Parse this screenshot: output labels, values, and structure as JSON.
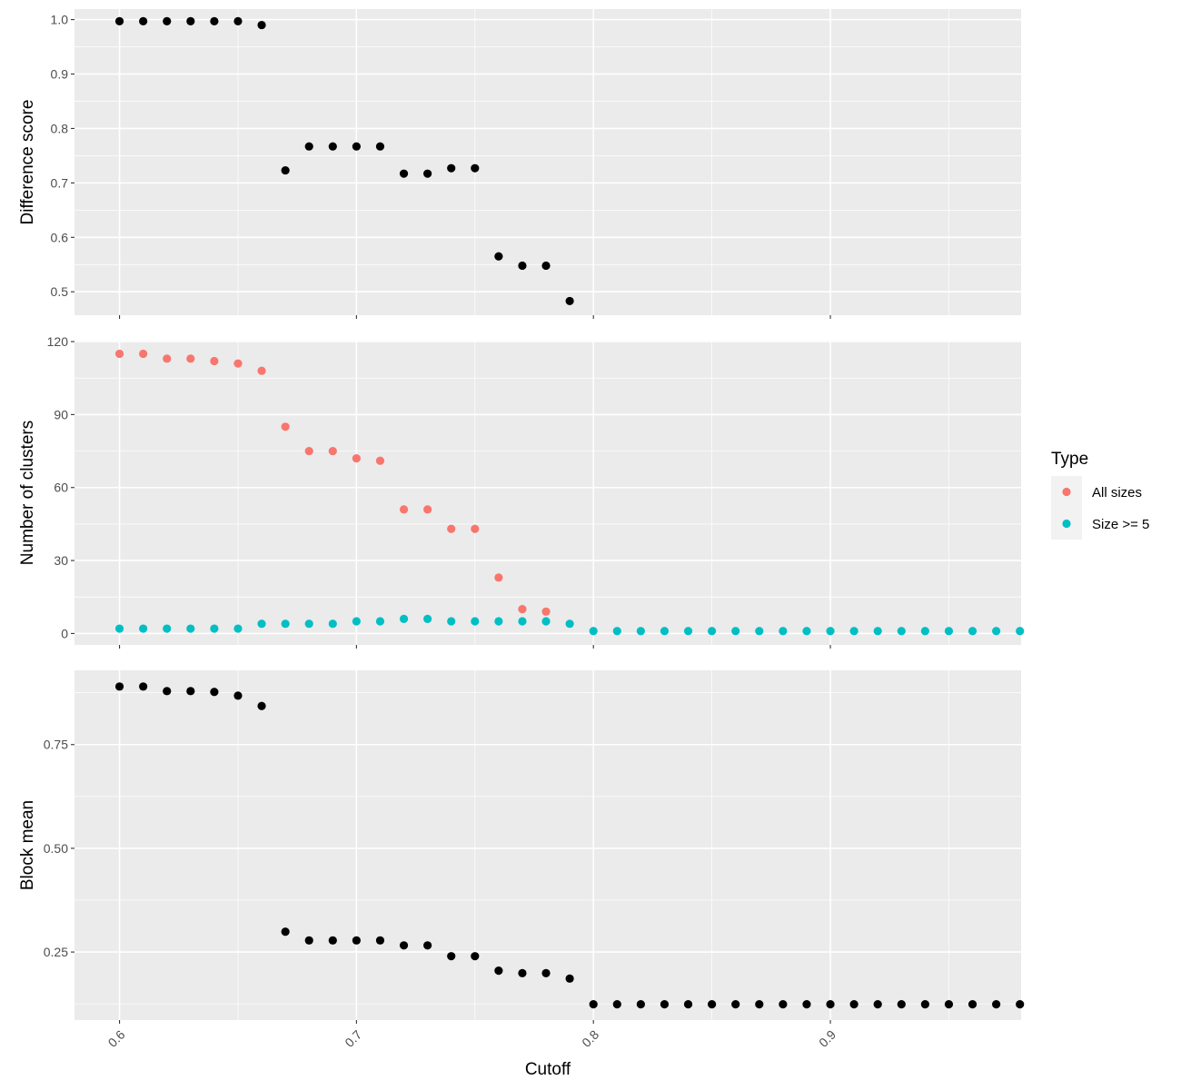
{
  "chart_data": {
    "type": "scatter",
    "xlabel": "Cutoff",
    "x_ticks": [
      "0.6",
      "0.7",
      "0.8",
      "0.9"
    ],
    "x_tick_values": [
      0.6,
      0.7,
      0.8,
      0.9
    ],
    "xlim": [
      0.581,
      0.9805
    ],
    "grid": true,
    "legend": {
      "title": "Type",
      "placement": "right",
      "entries": [
        {
          "label": "All sizes",
          "color": "#F8766D"
        },
        {
          "label": "Size >= 5",
          "color": "#00BFC4"
        }
      ]
    },
    "panels": [
      {
        "ylabel": "Difference score",
        "ylim": [
          0.457,
          1.0193
        ],
        "y_ticks": [
          "0.5",
          "0.6",
          "0.7",
          "0.8",
          "0.9",
          "1.0"
        ],
        "y_tick_values": [
          0.5,
          0.6,
          0.7,
          0.8,
          0.9,
          1.0
        ],
        "series": [
          {
            "color": "#000000",
            "x": [
              0.6,
              0.61,
              0.62,
              0.63,
              0.64,
              0.65,
              0.66,
              0.67,
              0.68,
              0.69,
              0.7,
              0.71,
              0.72,
              0.73,
              0.74,
              0.75,
              0.76,
              0.77,
              0.78,
              0.79
            ],
            "y": [
              0.997,
              0.997,
              0.997,
              0.997,
              0.997,
              0.997,
              0.99,
              0.723,
              0.767,
              0.767,
              0.767,
              0.767,
              0.717,
              0.717,
              0.727,
              0.727,
              0.565,
              0.548,
              0.548,
              0.483
            ]
          }
        ]
      },
      {
        "ylabel": "Number of clusters",
        "ylim": [
          -4.7,
          120.4
        ],
        "y_ticks": [
          "0",
          "30",
          "60",
          "90",
          "120"
        ],
        "y_tick_values": [
          0,
          30,
          60,
          90,
          120
        ],
        "series": [
          {
            "name": "All sizes",
            "color": "#F8766D",
            "x": [
              0.6,
              0.61,
              0.62,
              0.63,
              0.64,
              0.65,
              0.66,
              0.67,
              0.68,
              0.69,
              0.7,
              0.71,
              0.72,
              0.73,
              0.74,
              0.75,
              0.76,
              0.77,
              0.78
            ],
            "y": [
              115,
              115,
              113,
              113,
              112,
              111,
              108,
              85,
              75,
              75,
              72,
              71,
              51,
              51,
              43,
              43,
              23,
              10,
              9
            ]
          },
          {
            "name": "Size >= 5",
            "color": "#00BFC4",
            "x": [
              0.6,
              0.61,
              0.62,
              0.63,
              0.64,
              0.65,
              0.66,
              0.67,
              0.68,
              0.69,
              0.7,
              0.71,
              0.72,
              0.73,
              0.74,
              0.75,
              0.76,
              0.77,
              0.78,
              0.79,
              0.8,
              0.81,
              0.82,
              0.83,
              0.84,
              0.85,
              0.86,
              0.87,
              0.88,
              0.89,
              0.9,
              0.91,
              0.92,
              0.93,
              0.94,
              0.95,
              0.96,
              0.97,
              0.98
            ],
            "y": [
              2,
              2,
              2,
              2,
              2,
              2,
              4,
              4,
              4,
              4,
              5,
              5,
              6,
              6,
              5,
              5,
              5,
              5,
              5,
              4,
              1,
              1,
              1,
              1,
              1,
              1,
              1,
              1,
              1,
              1,
              1,
              1,
              1,
              1,
              1,
              1,
              1,
              1,
              1
            ]
          }
        ]
      },
      {
        "ylabel": "Block mean",
        "ylim": [
          0.086,
          0.929
        ],
        "y_ticks": [
          "0.25",
          "0.50",
          "0.75"
        ],
        "y_tick_values": [
          0.25,
          0.5,
          0.75
        ],
        "series": [
          {
            "color": "#000000",
            "x": [
              0.6,
              0.61,
              0.62,
              0.63,
              0.64,
              0.65,
              0.66,
              0.67,
              0.68,
              0.69,
              0.7,
              0.71,
              0.72,
              0.73,
              0.74,
              0.75,
              0.76,
              0.77,
              0.78,
              0.79,
              0.8,
              0.81,
              0.82,
              0.83,
              0.84,
              0.85,
              0.86,
              0.87,
              0.88,
              0.89,
              0.9,
              0.91,
              0.92,
              0.93,
              0.94,
              0.95,
              0.96,
              0.97,
              0.98
            ],
            "y": [
              0.89,
              0.89,
              0.879,
              0.879,
              0.877,
              0.868,
              0.843,
              0.299,
              0.278,
              0.278,
              0.278,
              0.278,
              0.266,
              0.266,
              0.24,
              0.24,
              0.205,
              0.199,
              0.199,
              0.186,
              0.124,
              0.124,
              0.124,
              0.124,
              0.124,
              0.124,
              0.124,
              0.124,
              0.124,
              0.124,
              0.124,
              0.124,
              0.124,
              0.124,
              0.124,
              0.124,
              0.124,
              0.124,
              0.124
            ]
          }
        ]
      }
    ]
  }
}
